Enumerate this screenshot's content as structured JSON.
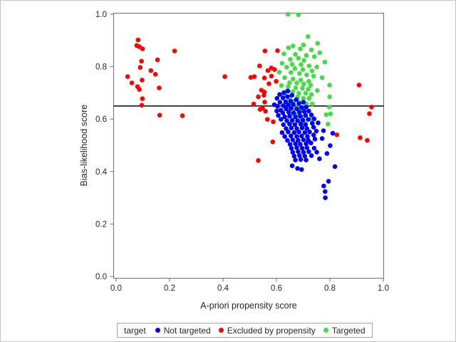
{
  "figure": {
    "y_axis_label": "Bias-likelihood score",
    "x_axis_label": "A-priori propensity score"
  },
  "axes": {
    "x_ticks": [
      "0.0",
      "0.2",
      "0.4",
      "0.6",
      "0.8",
      "1.0"
    ],
    "y_ticks": [
      "0.0",
      "0.2",
      "0.4",
      "0.6",
      "0.8",
      "1.0"
    ]
  },
  "legend": {
    "title": "target",
    "items": [
      {
        "label": "Not targeted",
        "color": "#0000FF"
      },
      {
        "label": "Excluded by propensity",
        "color": "#FF0000"
      },
      {
        "label": "Targeted",
        "color": "#44DC44"
      }
    ]
  },
  "chart_data": {
    "type": "scatter",
    "title": "",
    "xlabel": "A-priori propensity score",
    "ylabel": "Bias-likelihood score",
    "xlim": [
      0.0,
      1.0
    ],
    "ylim": [
      0.0,
      1.0
    ],
    "x_tick_values": [
      0.0,
      0.2,
      0.4,
      0.6,
      0.8,
      1.0
    ],
    "y_tick_values": [
      0.0,
      0.2,
      0.4,
      0.6,
      0.8,
      1.0
    ],
    "grid": false,
    "legend_position": "bottom",
    "legend_title": "target",
    "reference_line_y": 0.65,
    "marker": "filled-circle",
    "series": [
      {
        "name": "Not targeted",
        "color": "#0000FF",
        "points": [
          [
            0.592,
            0.655
          ],
          [
            0.601,
            0.631
          ],
          [
            0.612,
            0.694
          ],
          [
            0.628,
            0.701
          ],
          [
            0.643,
            0.707
          ],
          [
            0.602,
            0.679
          ],
          [
            0.624,
            0.681
          ],
          [
            0.641,
            0.686
          ],
          [
            0.658,
            0.691
          ],
          [
            0.613,
            0.664
          ],
          [
            0.634,
            0.666
          ],
          [
            0.653,
            0.669
          ],
          [
            0.674,
            0.674
          ],
          [
            0.604,
            0.649
          ],
          [
            0.626,
            0.651
          ],
          [
            0.644,
            0.654
          ],
          [
            0.663,
            0.656
          ],
          [
            0.684,
            0.659
          ],
          [
            0.701,
            0.664
          ],
          [
            0.616,
            0.634
          ],
          [
            0.636,
            0.639
          ],
          [
            0.654,
            0.641
          ],
          [
            0.676,
            0.639
          ],
          [
            0.694,
            0.644
          ],
          [
            0.711,
            0.646
          ],
          [
            0.624,
            0.624
          ],
          [
            0.646,
            0.626
          ],
          [
            0.664,
            0.624
          ],
          [
            0.686,
            0.626
          ],
          [
            0.704,
            0.629
          ],
          [
            0.721,
            0.631
          ],
          [
            0.607,
            0.614
          ],
          [
            0.631,
            0.609
          ],
          [
            0.649,
            0.611
          ],
          [
            0.671,
            0.609
          ],
          [
            0.689,
            0.611
          ],
          [
            0.709,
            0.614
          ],
          [
            0.731,
            0.616
          ],
          [
            0.617,
            0.599
          ],
          [
            0.639,
            0.594
          ],
          [
            0.659,
            0.596
          ],
          [
            0.679,
            0.594
          ],
          [
            0.699,
            0.596
          ],
          [
            0.719,
            0.599
          ],
          [
            0.741,
            0.601
          ],
          [
            0.626,
            0.579
          ],
          [
            0.649,
            0.581
          ],
          [
            0.669,
            0.579
          ],
          [
            0.691,
            0.581
          ],
          [
            0.709,
            0.579
          ],
          [
            0.734,
            0.584
          ],
          [
            0.756,
            0.586
          ],
          [
            0.636,
            0.564
          ],
          [
            0.656,
            0.566
          ],
          [
            0.676,
            0.564
          ],
          [
            0.696,
            0.566
          ],
          [
            0.714,
            0.564
          ],
          [
            0.739,
            0.569
          ],
          [
            0.621,
            0.549
          ],
          [
            0.644,
            0.551
          ],
          [
            0.666,
            0.549
          ],
          [
            0.684,
            0.551
          ],
          [
            0.706,
            0.549
          ],
          [
            0.724,
            0.551
          ],
          [
            0.749,
            0.554
          ],
          [
            0.776,
            0.556
          ],
          [
            0.631,
            0.534
          ],
          [
            0.654,
            0.536
          ],
          [
            0.676,
            0.534
          ],
          [
            0.694,
            0.536
          ],
          [
            0.716,
            0.534
          ],
          [
            0.739,
            0.539
          ],
          [
            0.641,
            0.519
          ],
          [
            0.661,
            0.521
          ],
          [
            0.681,
            0.519
          ],
          [
            0.701,
            0.521
          ],
          [
            0.719,
            0.519
          ],
          [
            0.744,
            0.524
          ],
          [
            0.771,
            0.526
          ],
          [
            0.651,
            0.504
          ],
          [
            0.671,
            0.506
          ],
          [
            0.689,
            0.504
          ],
          [
            0.711,
            0.506
          ],
          [
            0.729,
            0.509
          ],
          [
            0.656,
            0.489
          ],
          [
            0.676,
            0.491
          ],
          [
            0.696,
            0.489
          ],
          [
            0.714,
            0.491
          ],
          [
            0.741,
            0.489
          ],
          [
            0.801,
            0.499
          ],
          [
            0.661,
            0.474
          ],
          [
            0.681,
            0.476
          ],
          [
            0.701,
            0.474
          ],
          [
            0.721,
            0.476
          ],
          [
            0.751,
            0.474
          ],
          [
            0.789,
            0.469
          ],
          [
            0.666,
            0.459
          ],
          [
            0.686,
            0.461
          ],
          [
            0.706,
            0.459
          ],
          [
            0.731,
            0.461
          ],
          [
            0.671,
            0.444
          ],
          [
            0.691,
            0.446
          ],
          [
            0.711,
            0.444
          ],
          [
            0.761,
            0.449
          ],
          [
            0.659,
            0.422
          ],
          [
            0.679,
            0.412
          ],
          [
            0.694,
            0.408
          ],
          [
            0.819,
            0.419
          ],
          [
            0.795,
            0.363
          ],
          [
            0.777,
            0.345
          ],
          [
            0.782,
            0.324
          ],
          [
            0.783,
            0.3
          ],
          [
            0.811,
            0.546
          ]
        ]
      },
      {
        "name": "Excluded by propensity",
        "color": "#FF0000",
        "points": [
          [
            0.082,
            0.902
          ],
          [
            0.077,
            0.881
          ],
          [
            0.087,
            0.876
          ],
          [
            0.099,
            0.868
          ],
          [
            0.219,
            0.86
          ],
          [
            0.095,
            0.821
          ],
          [
            0.155,
            0.826
          ],
          [
            0.09,
            0.797
          ],
          [
            0.13,
            0.785
          ],
          [
            0.147,
            0.771
          ],
          [
            0.043,
            0.762
          ],
          [
            0.097,
            0.749
          ],
          [
            0.059,
            0.738
          ],
          [
            0.08,
            0.724
          ],
          [
            0.087,
            0.713
          ],
          [
            0.161,
            0.719
          ],
          [
            0.098,
            0.678
          ],
          [
            0.096,
            0.653
          ],
          [
            0.163,
            0.615
          ],
          [
            0.248,
            0.613
          ],
          [
            0.407,
            0.762
          ],
          [
            0.557,
            0.86
          ],
          [
            0.604,
            0.861
          ],
          [
            0.537,
            0.803
          ],
          [
            0.581,
            0.795
          ],
          [
            0.568,
            0.785
          ],
          [
            0.593,
            0.789
          ],
          [
            0.504,
            0.759
          ],
          [
            0.517,
            0.762
          ],
          [
            0.555,
            0.757
          ],
          [
            0.581,
            0.764
          ],
          [
            0.599,
            0.744
          ],
          [
            0.572,
            0.735
          ],
          [
            0.544,
            0.71
          ],
          [
            0.555,
            0.703
          ],
          [
            0.532,
            0.685
          ],
          [
            0.553,
            0.691
          ],
          [
            0.515,
            0.658
          ],
          [
            0.556,
            0.665
          ],
          [
            0.539,
            0.637
          ],
          [
            0.548,
            0.642
          ],
          [
            0.559,
            0.63
          ],
          [
            0.566,
            0.599
          ],
          [
            0.588,
            0.59
          ],
          [
            0.586,
            0.513
          ],
          [
            0.532,
            0.442
          ],
          [
            0.909,
            0.73
          ],
          [
            0.956,
            0.646
          ],
          [
            0.948,
            0.621
          ],
          [
            0.826,
            0.54
          ],
          [
            0.913,
            0.529
          ],
          [
            0.94,
            0.519
          ]
        ]
      },
      {
        "name": "Targeted",
        "color": "#44DC44",
        "points": [
          [
            0.643,
            1.0
          ],
          [
            0.682,
            0.998
          ],
          [
            0.718,
            0.915
          ],
          [
            0.754,
            0.889
          ],
          [
            0.701,
            0.883
          ],
          [
            0.662,
            0.879
          ],
          [
            0.645,
            0.872
          ],
          [
            0.689,
            0.868
          ],
          [
            0.731,
            0.864
          ],
          [
            0.762,
            0.853
          ],
          [
            0.628,
            0.849
          ],
          [
            0.671,
            0.847
          ],
          [
            0.712,
            0.843
          ],
          [
            0.742,
            0.838
          ],
          [
            0.682,
            0.833
          ],
          [
            0.652,
            0.828
          ],
          [
            0.703,
            0.824
          ],
          [
            0.781,
            0.818
          ],
          [
            0.621,
            0.813
          ],
          [
            0.659,
            0.809
          ],
          [
            0.692,
            0.808
          ],
          [
            0.722,
            0.803
          ],
          [
            0.751,
            0.799
          ],
          [
            0.638,
            0.798
          ],
          [
            0.669,
            0.793
          ],
          [
            0.699,
            0.789
          ],
          [
            0.733,
            0.784
          ],
          [
            0.611,
            0.779
          ],
          [
            0.654,
            0.778
          ],
          [
            0.686,
            0.774
          ],
          [
            0.713,
            0.769
          ],
          [
            0.739,
            0.764
          ],
          [
            0.771,
            0.758
          ],
          [
            0.631,
            0.758
          ],
          [
            0.662,
            0.753
          ],
          [
            0.691,
            0.749
          ],
          [
            0.721,
            0.744
          ],
          [
            0.649,
            0.739
          ],
          [
            0.676,
            0.738
          ],
          [
            0.702,
            0.734
          ],
          [
            0.728,
            0.729
          ],
          [
            0.799,
            0.73
          ],
          [
            0.619,
            0.728
          ],
          [
            0.644,
            0.724
          ],
          [
            0.672,
            0.719
          ],
          [
            0.697,
            0.718
          ],
          [
            0.719,
            0.714
          ],
          [
            0.753,
            0.709
          ],
          [
            0.639,
            0.708
          ],
          [
            0.661,
            0.704
          ],
          [
            0.684,
            0.699
          ],
          [
            0.709,
            0.699
          ],
          [
            0.731,
            0.694
          ],
          [
            0.629,
            0.693
          ],
          [
            0.656,
            0.689
          ],
          [
            0.679,
            0.684
          ],
          [
            0.701,
            0.679
          ],
          [
            0.722,
            0.679
          ],
          [
            0.799,
            0.685
          ],
          [
            0.646,
            0.674
          ],
          [
            0.666,
            0.669
          ],
          [
            0.688,
            0.664
          ],
          [
            0.712,
            0.659
          ],
          [
            0.734,
            0.658
          ],
          [
            0.654,
            0.653
          ],
          [
            0.681,
            0.649
          ],
          [
            0.703,
            0.644
          ],
          [
            0.798,
            0.646
          ],
          [
            0.664,
            0.639
          ],
          [
            0.69,
            0.634
          ],
          [
            0.718,
            0.629
          ],
          [
            0.786,
            0.617
          ],
          [
            0.802,
            0.62
          ],
          [
            0.679,
            0.619
          ],
          [
            0.653,
            0.614
          ],
          [
            0.699,
            0.609
          ],
          [
            0.793,
            0.581
          ],
          [
            0.729,
            0.599
          ],
          [
            0.684,
            0.594
          ],
          [
            0.659,
            0.589
          ],
          [
            0.708,
            0.584
          ],
          [
            0.694,
            0.574
          ]
        ]
      }
    ]
  }
}
